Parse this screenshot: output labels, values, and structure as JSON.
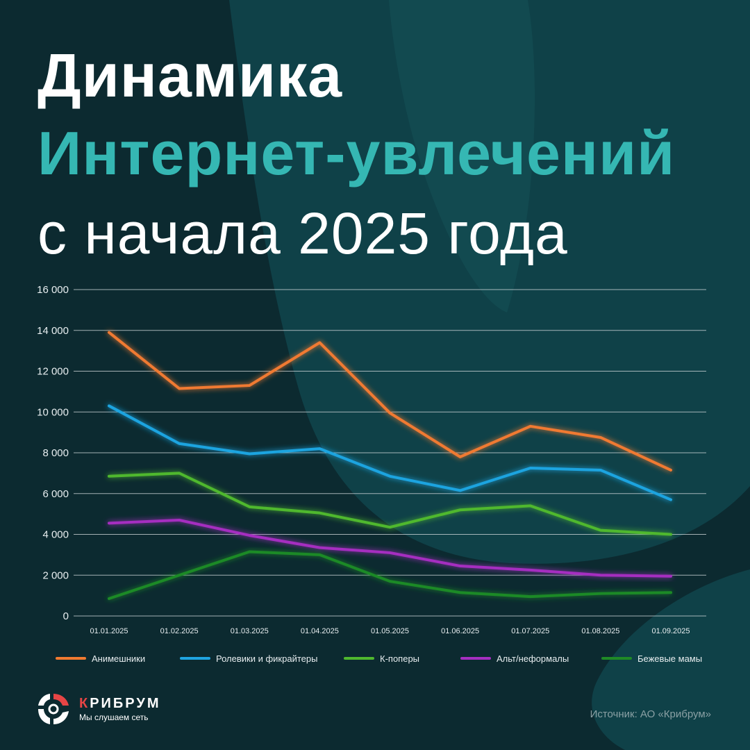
{
  "header": {
    "line1": "Динамика",
    "line2": "Интернет-увлечений",
    "line3": "с начала 2025 года"
  },
  "colors": {
    "background": "#0c2a30",
    "accent": "#35b7b3",
    "grid": "#d8dee0",
    "axis_text": "#e8eef0"
  },
  "chart_data": {
    "type": "line",
    "title": "",
    "xlabel": "",
    "ylabel": "",
    "ylim": [
      0,
      16000
    ],
    "yticks": [
      0,
      2000,
      4000,
      6000,
      8000,
      10000,
      12000,
      14000,
      16000
    ],
    "ytick_labels": [
      "0",
      "2 000",
      "4 000",
      "6 000",
      "8 000",
      "10 000",
      "12 000",
      "14 000",
      "16 000"
    ],
    "categories": [
      "01.01.2025",
      "01.02.2025",
      "01.03.2025",
      "01.04.2025",
      "01.05.2025",
      "01.06.2025",
      "01.07.2025",
      "01.08.2025",
      "01.09.2025"
    ],
    "grid": true,
    "legend_position": "bottom",
    "series": [
      {
        "name": "Анимешники",
        "color": "#f07a30",
        "values": [
          13900,
          11150,
          11300,
          13400,
          9950,
          7800,
          9300,
          8750,
          7150
        ]
      },
      {
        "name": "Ролевики и фикрайтеры",
        "color": "#1fa4e0",
        "values": [
          10300,
          8450,
          7950,
          8200,
          6850,
          6150,
          7250,
          7150,
          5700
        ]
      },
      {
        "name": "К-поперы",
        "color": "#4fb82e",
        "values": [
          6850,
          7000,
          5350,
          5050,
          4350,
          5200,
          5400,
          4200,
          4000
        ]
      },
      {
        "name": "Альт/неформалы",
        "color": "#a52fc0",
        "values": [
          4550,
          4700,
          3950,
          3350,
          3100,
          2450,
          2250,
          2000,
          1950
        ]
      },
      {
        "name": "Бежевые мамы",
        "color": "#1f8a26",
        "values": [
          850,
          2000,
          3150,
          3000,
          1700,
          1150,
          950,
          1100,
          1150
        ]
      }
    ]
  },
  "footer": {
    "brand_first": "К",
    "brand_rest": "РИБРУМ",
    "tagline": "Мы слушаем сеть",
    "source": "Источник: АО «Крибрум»"
  }
}
